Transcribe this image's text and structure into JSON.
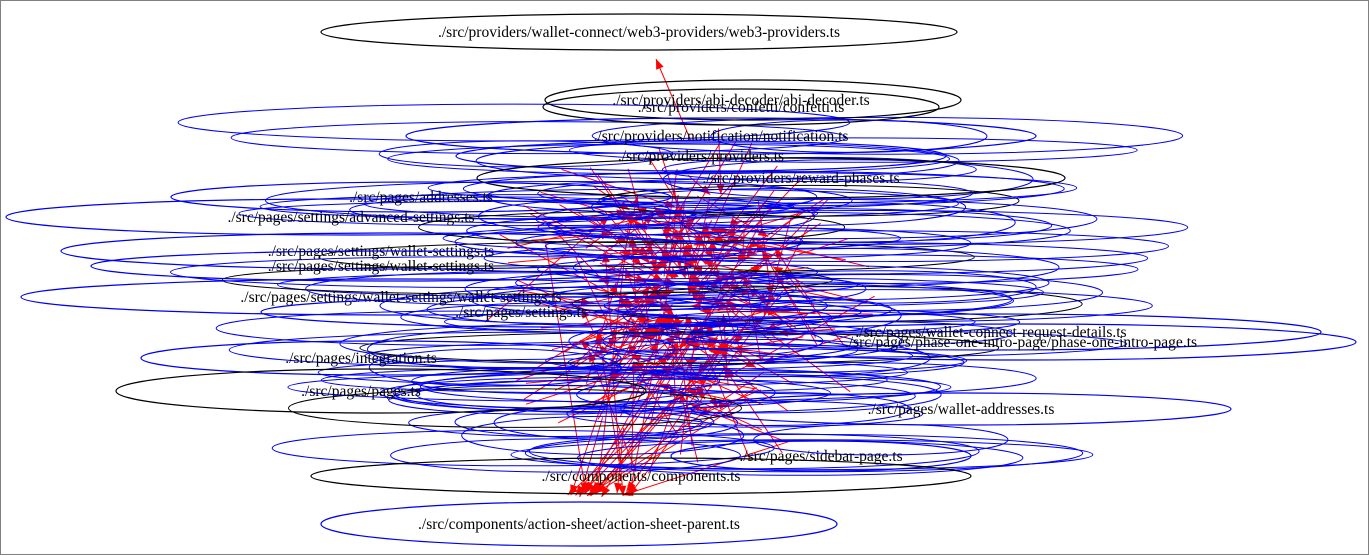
{
  "graph": {
    "colors": {
      "background": "#ffffff",
      "highlight_node_stroke": "#000000",
      "normal_node_stroke": "#0000ee",
      "edge": "#ff0000",
      "label": "#000000"
    },
    "nodes": [
      {
        "id": "web3-providers",
        "label": "./src/providers/wallet-connect/web3-providers/web3-providers.ts",
        "highlight": true
      },
      {
        "id": "abi-decoder",
        "label": "./src/providers/abi-decoder/abi-decoder.ts",
        "highlight": true
      },
      {
        "id": "confetti",
        "label": "./src/providers/confetti/confetti.ts",
        "highlight": true
      },
      {
        "id": "notification",
        "label": "./src/providers/notification/notification.ts",
        "highlight": false
      },
      {
        "id": "providers-misc",
        "label": "./src/providers/providers.ts",
        "highlight": false
      },
      {
        "id": "reward-phases",
        "label": "./src/providers/reward-phases.ts",
        "highlight": true
      },
      {
        "id": "addresses",
        "label": "./src/pages/addresses.ts",
        "highlight": false
      },
      {
        "id": "advanced",
        "label": "./src/pages/settings/advanced-settings.ts",
        "highlight": false
      },
      {
        "id": "wallet-settings-a",
        "label": "./src/pages/settings/wallet-settings.ts",
        "highlight": false
      },
      {
        "id": "wallet-settings-b",
        "label": "./src/pages/settings/wallet-settings.ts",
        "highlight": false
      },
      {
        "id": "wallet-settings-c",
        "label": "./src/pages/settings/wallet-settings/wallet-settings.ts",
        "highlight": false
      },
      {
        "id": "settings-x",
        "label": "./src/pages/settings.ts",
        "highlight": false
      },
      {
        "id": "wc-request-details",
        "label": "./src/pages/wallet-connect-request-details.ts",
        "highlight": false
      },
      {
        "id": "phase-one-intro",
        "label": "./src/pages/phase-one-intro-page/phase-one-intro-page.ts",
        "highlight": false
      },
      {
        "id": "integration",
        "label": "./src/pages/integration.ts",
        "highlight": false
      },
      {
        "id": "pages-big",
        "label": "./src/pages/pages.ts",
        "highlight": true
      },
      {
        "id": "wallet-addresses",
        "label": "./src/pages/wallet-addresses.ts",
        "highlight": false
      },
      {
        "id": "sidebar-page",
        "label": "./src/pages/sidebar-page.ts",
        "highlight": false
      },
      {
        "id": "components-bottom",
        "label": "./src/components/components.ts",
        "highlight": true
      },
      {
        "id": "action-sheet-parent",
        "label": "./src/components/action-sheet/action-sheet-parent.ts",
        "highlight": false
      }
    ]
  }
}
